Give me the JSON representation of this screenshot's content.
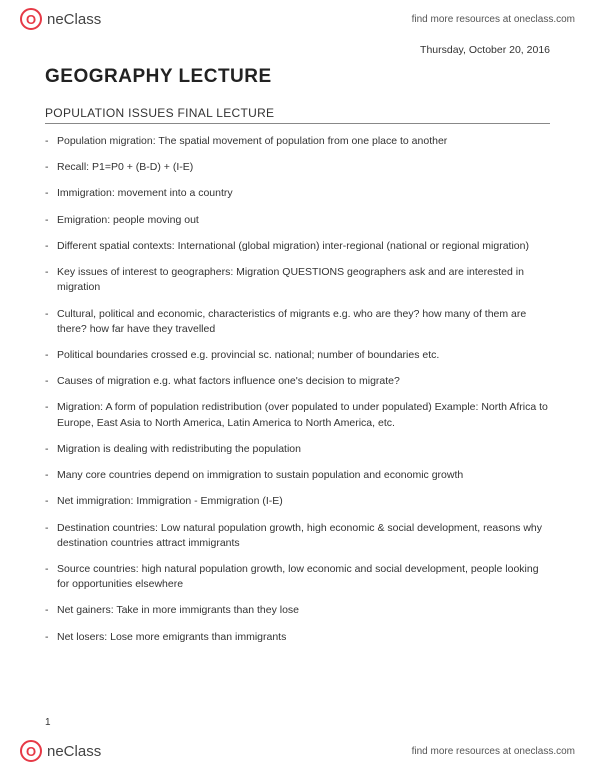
{
  "header": {
    "logo_text": "neClass",
    "resources_link": "find more resources at oneclass.com"
  },
  "document": {
    "date": "Thursday, October 20, 2016",
    "main_title": "GEOGRAPHY LECTURE",
    "sub_title": "POPULATION ISSUES FINAL LECTURE",
    "page_number": "1",
    "bullets": [
      "Population migration: The spatial movement of population from one place to another",
      "Recall: P1=P0 + (B-D) + (I-E)",
      "Immigration: movement into a country",
      "Emigration: people moving out",
      "Different spatial contexts: International (global migration) inter-regional (national or regional migration)",
      "Key issues of interest to geographers: Migration QUESTIONS geographers ask and are interested in migration",
      "Cultural, political and economic, characteristics of migrants e.g. who are they? how many of them are there? how far have they travelled",
      "Political boundaries crossed e.g. provincial sc. national; number of boundaries etc.",
      "Causes of migration e.g. what factors influence one's decision to migrate?",
      "Migration: A form of population redistribution (over populated to under populated) Example: North Africa to Europe, East Asia to North America, Latin America to North America, etc.",
      "Migration is dealing with redistributing the population",
      "Many core countries depend on immigration to sustain population and economic growth",
      "Net immigration: Immigration - Emmigration (I-E)",
      "Destination countries: Low natural population growth, high economic & social development, reasons why destination countries attract immigrants",
      "Source countries: high natural population growth, low economic and social development, people looking for opportunities elsewhere",
      "Net gainers: Take in more immigrants than they lose",
      "Net losers: Lose more emigrants than immigrants"
    ]
  },
  "footer": {
    "logo_text": "neClass",
    "resources_link": "find more resources at oneclass.com"
  },
  "colors": {
    "brand_red": "#e63946",
    "text_primary": "#333333",
    "text_muted": "#555555",
    "divider": "#888888",
    "background": "#ffffff"
  },
  "typography": {
    "main_title_size": 19,
    "sub_title_size": 12,
    "body_size": 10.5,
    "small_size": 10
  }
}
